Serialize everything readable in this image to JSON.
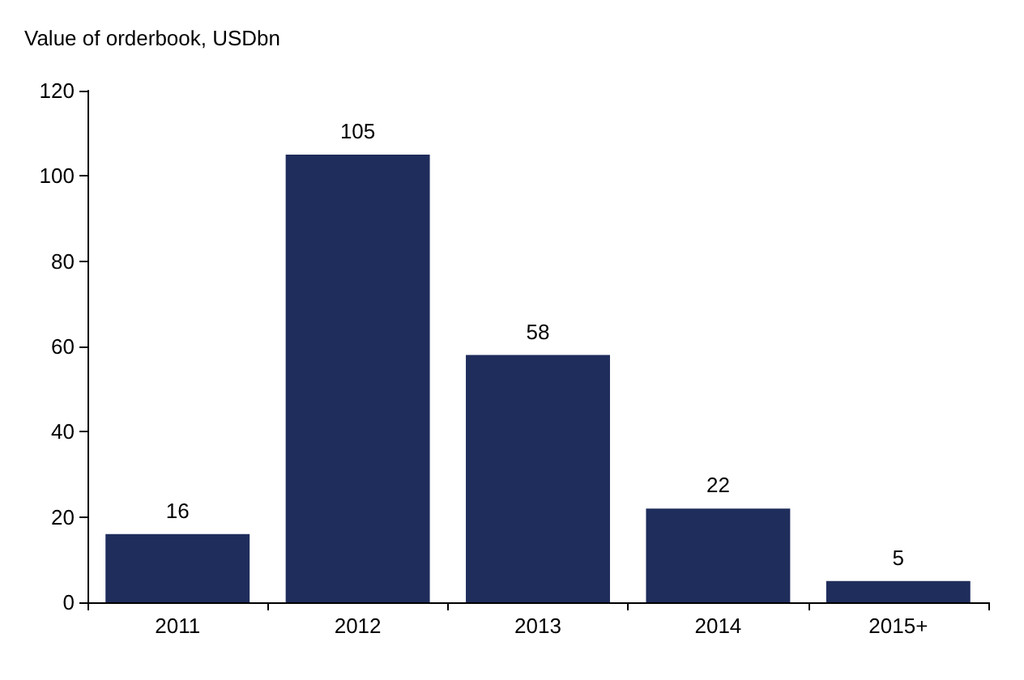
{
  "chart_data": {
    "type": "bar",
    "title": "Value of orderbook, USDbn",
    "categories": [
      "2011",
      "2012",
      "2013",
      "2014",
      "2015+"
    ],
    "values": [
      16,
      105,
      58,
      22,
      5
    ],
    "color": "#1f2d5c",
    "data_labels": true,
    "ylim": [
      0,
      120
    ],
    "yticks": [
      0,
      20,
      40,
      60,
      80,
      100,
      120
    ],
    "grid": false
  }
}
